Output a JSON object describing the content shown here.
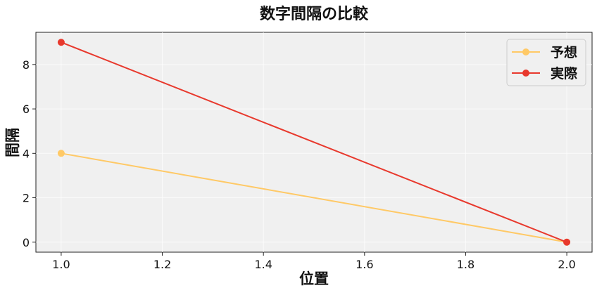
{
  "chart_data": {
    "type": "line",
    "title": "数字間隔の比較",
    "xlabel": "位置",
    "ylabel": "間隔",
    "x": [
      1.0,
      2.0
    ],
    "xlim": [
      0.95,
      2.05
    ],
    "ylim": [
      -0.45,
      9.45
    ],
    "xticks": [
      1.0,
      1.2,
      1.4,
      1.6,
      1.8,
      2.0
    ],
    "xtick_labels": [
      "1.0",
      "1.2",
      "1.4",
      "1.6",
      "1.8",
      "2.0"
    ],
    "yticks": [
      0,
      2,
      4,
      6,
      8
    ],
    "ytick_labels": [
      "0",
      "2",
      "4",
      "6",
      "8"
    ],
    "grid": true,
    "legend_position": "top-right",
    "series": [
      {
        "name": "予想",
        "values": [
          4,
          0
        ],
        "color": "#FFC966"
      },
      {
        "name": "実際",
        "values": [
          9,
          0
        ],
        "color": "#E8392D"
      }
    ],
    "background_color": "#F0F0F0"
  }
}
